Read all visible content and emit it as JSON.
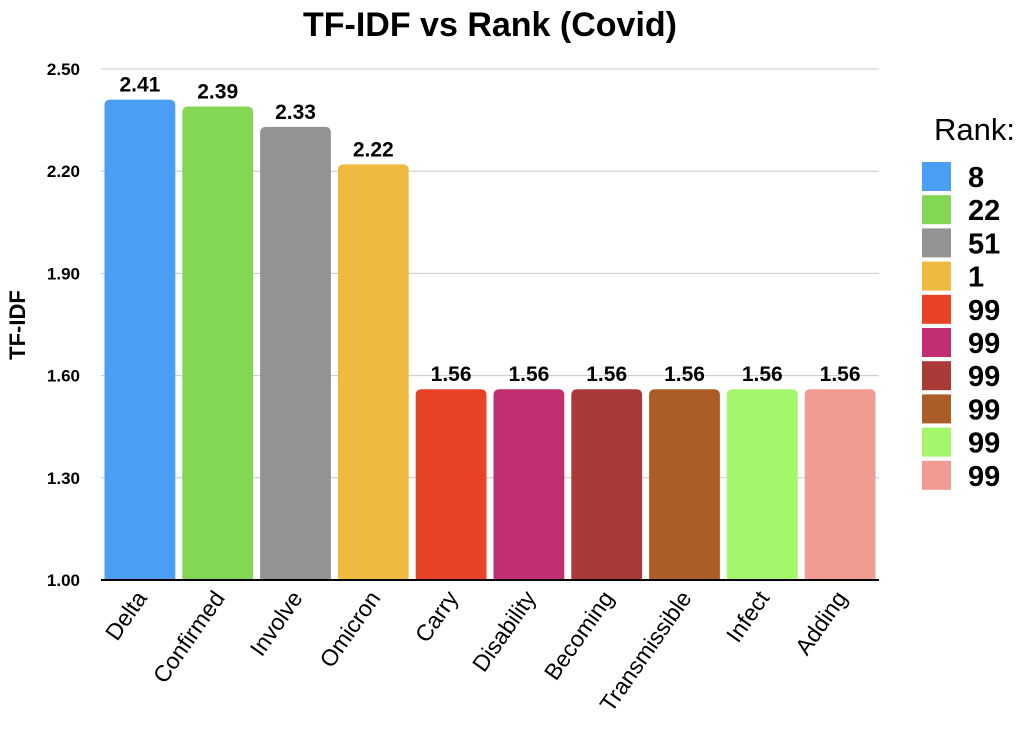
{
  "chart_data": {
    "type": "bar",
    "title": "TF-IDF vs Rank (Covid)",
    "xlabel": "",
    "ylabel": "TF-IDF",
    "ylim": [
      1.0,
      2.5
    ],
    "yticks": [
      "1.00",
      "1.30",
      "1.60",
      "1.90",
      "2.20",
      "2.50"
    ],
    "grid": true,
    "categories": [
      "Delta",
      "Confirmed",
      "Involve",
      "Omicron",
      "Carry",
      "Disability",
      "Becoming",
      "Transmissible",
      "Infect",
      "Adding"
    ],
    "values": [
      2.41,
      2.39,
      2.33,
      2.22,
      1.56,
      1.56,
      1.56,
      1.56,
      1.56,
      1.56
    ],
    "data_labels": [
      "2.41",
      "2.39",
      "2.33",
      "2.22",
      "1.56",
      "1.56",
      "1.56",
      "1.56",
      "1.56",
      "1.56"
    ],
    "colors": [
      "#4a9ff5",
      "#84d655",
      "#939393",
      "#eebb40",
      "#e84227",
      "#c12f72",
      "#aa3a38",
      "#aa5d26",
      "#a4f76a",
      "#f09c93"
    ],
    "legend": {
      "title": "Rank:",
      "position": "right",
      "entries": [
        "8",
        "22",
        "51",
        "1",
        "99",
        "99",
        "99",
        "99",
        "99",
        "99"
      ]
    }
  }
}
